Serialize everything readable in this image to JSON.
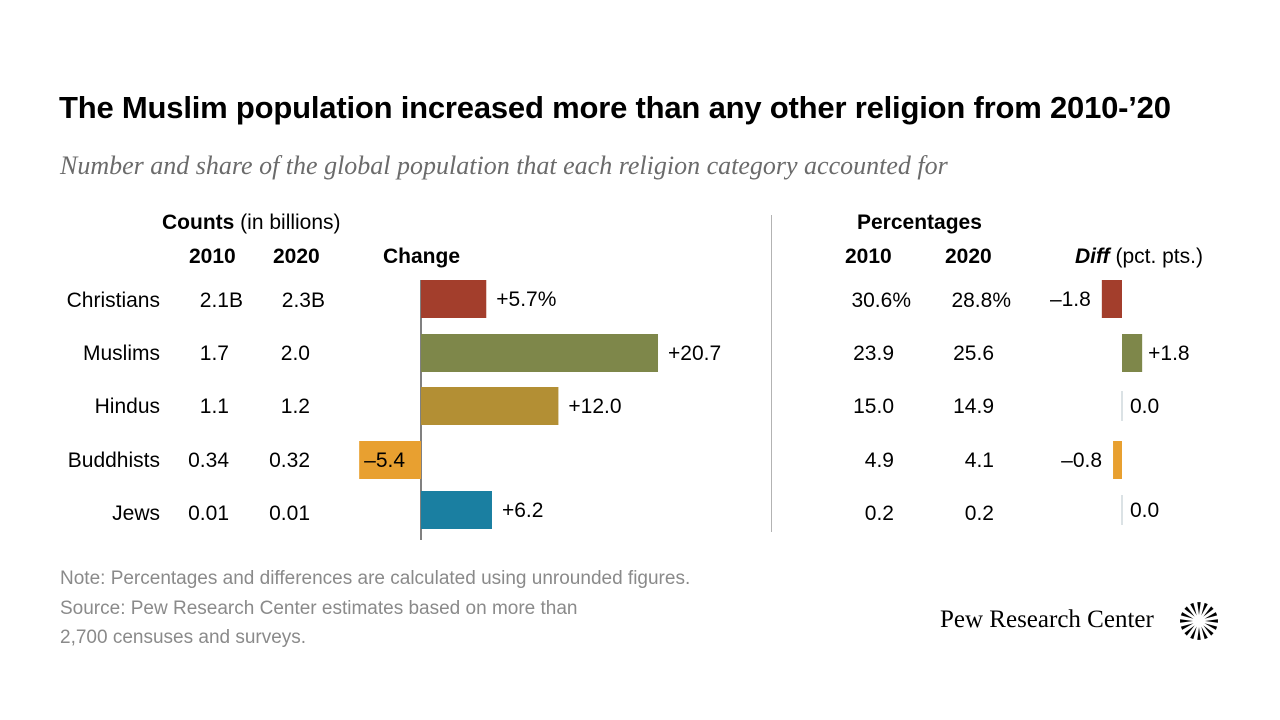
{
  "title": "The Muslim population increased more than any other religion from 2010-’20",
  "subtitle": "Number and share of the global population that each religion category accounted for",
  "headers": {
    "counts_bold": "Counts",
    "counts_light": "(in billions)",
    "col_2010": "2010",
    "col_2020": "2020",
    "change": "Change",
    "percentages": "Percentages",
    "pct_2010": "2010",
    "pct_2020": "2020",
    "diff_bold": "Diff",
    "diff_light": "(pct. pts.)"
  },
  "rows": [
    {
      "label": "Christians",
      "c2010": "2.1B",
      "c2020": "2.3B",
      "change_label": "+5.7%",
      "p2010": "30.6%",
      "p2020": "28.8%",
      "diff_label": "–1.8"
    },
    {
      "label": "Muslims",
      "c2010": "1.7",
      "c2020": "2.0",
      "change_label": "+20.7",
      "p2010": "23.9",
      "p2020": "25.6",
      "diff_label": "+1.8"
    },
    {
      "label": "Hindus",
      "c2010": "1.1",
      "c2020": "1.2",
      "change_label": "+12.0",
      "p2010": "15.0",
      "p2020": "14.9",
      "diff_label": "0.0"
    },
    {
      "label": "Buddhists",
      "c2010": "0.34",
      "c2020": "0.32",
      "change_label": "–5.4",
      "p2010": "4.9",
      "p2020": "4.1",
      "diff_label": "–0.8"
    },
    {
      "label": "Jews",
      "c2010": "0.01",
      "c2020": "0.01",
      "change_label": "+6.2",
      "p2010": "0.2",
      "p2020": "0.2",
      "diff_label": "0.0"
    }
  ],
  "chart_data": [
    {
      "type": "bar",
      "orientation": "horizontal",
      "xlabel": "Change",
      "categories": [
        "Christians",
        "Muslims",
        "Hindus",
        "Buddhists",
        "Jews"
      ],
      "values": [
        5.7,
        20.7,
        12.0,
        -5.4,
        6.2
      ],
      "colors": [
        "#a33e2c",
        "#7e874a",
        "#b38f34",
        "#e8a030",
        "#1a7fa1"
      ]
    },
    {
      "type": "bar",
      "orientation": "horizontal",
      "xlabel": "Diff (pct. pts.)",
      "categories": [
        "Christians",
        "Muslims",
        "Hindus",
        "Buddhists",
        "Jews"
      ],
      "values": [
        -1.8,
        1.8,
        0.0,
        -0.8,
        0.0
      ],
      "colors": [
        "#a33e2c",
        "#7e874a",
        "#b38f34",
        "#e8a030",
        "#1a7fa1"
      ]
    }
  ],
  "note": "Note: Percentages and differences are calculated using unrounded figures.",
  "source_line1": "Source: Pew Research Center estimates based on more than",
  "source_line2": "2,700 censuses and surveys.",
  "brand": "Pew Research Center"
}
